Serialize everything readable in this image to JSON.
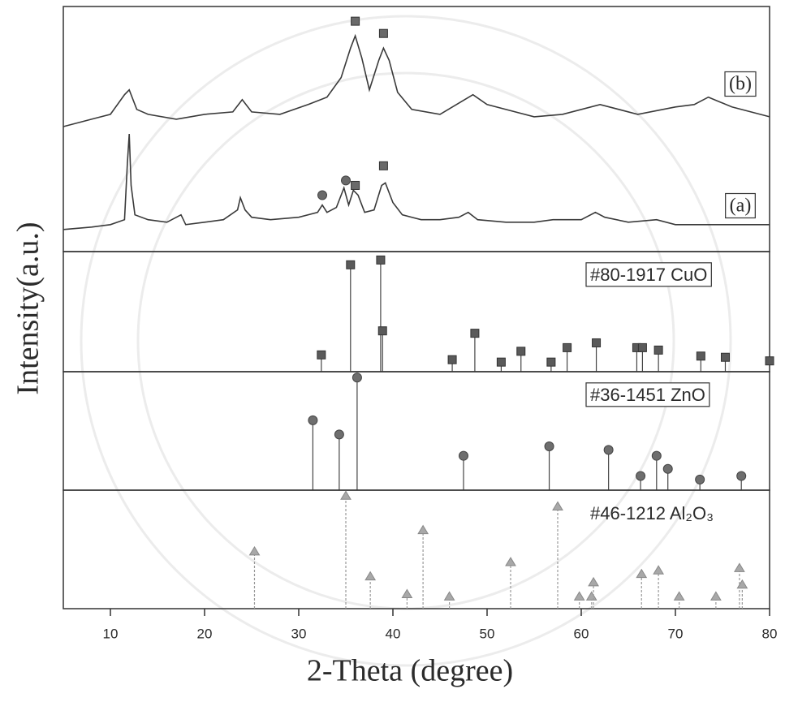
{
  "chart_data": [
    {
      "type": "line",
      "ylabel": "Intensity(a.u.)",
      "xlim": [
        5,
        80
      ],
      "ylim": [
        0,
        100
      ],
      "series": [
        {
          "name": "(b)",
          "color": "#3a3a3a",
          "x": [
            5,
            8,
            10,
            11.5,
            12,
            12.8,
            14,
            17,
            20,
            23,
            24,
            25,
            28,
            31,
            33,
            34.5,
            35.5,
            36,
            36.7,
            37.5,
            38.5,
            39,
            39.6,
            40.5,
            42,
            45,
            48.5,
            50,
            55,
            58,
            62,
            66,
            70,
            72,
            73.5,
            76,
            80
          ],
          "values": [
            51,
            54,
            56,
            64,
            66,
            58,
            56,
            54,
            56,
            57,
            62,
            57,
            56,
            60,
            63,
            71,
            83,
            88,
            79,
            66,
            78,
            83,
            78,
            65,
            58,
            56,
            64,
            60,
            55,
            56,
            60,
            56,
            59,
            60,
            63,
            59,
            55
          ],
          "markers": [
            {
              "x": 36,
              "y": 94,
              "shape": "square"
            },
            {
              "x": 39,
              "y": 89,
              "shape": "square"
            }
          ]
        },
        {
          "name": "(a)",
          "color": "#3a3a3a",
          "x": [
            5,
            8,
            10,
            11.5,
            11.8,
            12,
            12.2,
            12.6,
            14,
            16,
            17.5,
            18,
            20,
            22,
            23.5,
            23.8,
            24.3,
            25,
            27,
            30,
            32,
            32.5,
            33,
            34,
            34.8,
            35.3,
            35.8,
            36.3,
            37,
            38,
            38.8,
            39.2,
            40,
            41,
            43,
            45,
            47,
            48,
            49,
            52,
            55,
            57,
            60,
            61.5,
            62.5,
            65,
            68,
            70,
            75,
            80
          ],
          "values": [
            9,
            10,
            11,
            13,
            36,
            48,
            27,
            15,
            13,
            12,
            15,
            11,
            12,
            13,
            17,
            22,
            17,
            14,
            13,
            14,
            16,
            19,
            16,
            18,
            26,
            19,
            25,
            23,
            16,
            17,
            27,
            28,
            20,
            15,
            13,
            13,
            14,
            16,
            13,
            12,
            12,
            13,
            13,
            16,
            14,
            12,
            13,
            11,
            11,
            11
          ],
          "markers": [
            {
              "x": 32.5,
              "y": 23,
              "shape": "circle"
            },
            {
              "x": 35,
              "y": 29,
              "shape": "circle"
            },
            {
              "x": 36,
              "y": 27,
              "shape": "square"
            },
            {
              "x": 39,
              "y": 35,
              "shape": "square"
            }
          ]
        }
      ]
    },
    {
      "type": "stem",
      "title": "#80-1917 CuO",
      "marker": "square",
      "color": "#5a5a5a",
      "linestyle": "solid",
      "xlim": [
        5,
        80
      ],
      "ylim": [
        0,
        100
      ],
      "x": [
        32.4,
        35.5,
        38.7,
        38.9,
        46.3,
        48.7,
        51.5,
        53.6,
        56.8,
        58.5,
        61.6,
        65.9,
        66.5,
        68.2,
        72.7,
        75.3,
        80
      ],
      "values": [
        14,
        89,
        93,
        34,
        10,
        32,
        8,
        17,
        8,
        20,
        24,
        20,
        20,
        18,
        13,
        12,
        9
      ]
    },
    {
      "type": "stem",
      "title": "#36-1451 ZnO",
      "marker": "circle",
      "color": "#6e6e6e",
      "linestyle": "solid",
      "xlim": [
        5,
        80
      ],
      "ylim": [
        0,
        100
      ],
      "x": [
        31.5,
        34.3,
        36.2,
        47.5,
        56.6,
        62.9,
        66.3,
        68.0,
        69.2,
        72.6,
        77.0
      ],
      "values": [
        59,
        47,
        95,
        29,
        37,
        34,
        12,
        29,
        18,
        9,
        12
      ]
    },
    {
      "type": "stem",
      "title": "#46-1212 Al₂O₃",
      "marker": "triangle",
      "color": "#a8a8a8",
      "linestyle": "dashed",
      "xlim": [
        5,
        80
      ],
      "ylim": [
        0,
        100
      ],
      "xlabel": "2-Theta (degree)",
      "xticks": [
        10,
        20,
        30,
        40,
        50,
        60,
        70,
        80
      ],
      "x": [
        25.3,
        35.0,
        37.6,
        41.5,
        43.2,
        46.0,
        52.5,
        57.5,
        59.8,
        61.1,
        61.3,
        66.4,
        68.2,
        70.4,
        74.3,
        76.8,
        77.1
      ],
      "values": [
        48,
        95,
        27,
        12,
        66,
        10,
        39,
        86,
        10,
        10,
        22,
        29,
        32,
        10,
        10,
        34,
        20
      ]
    }
  ]
}
